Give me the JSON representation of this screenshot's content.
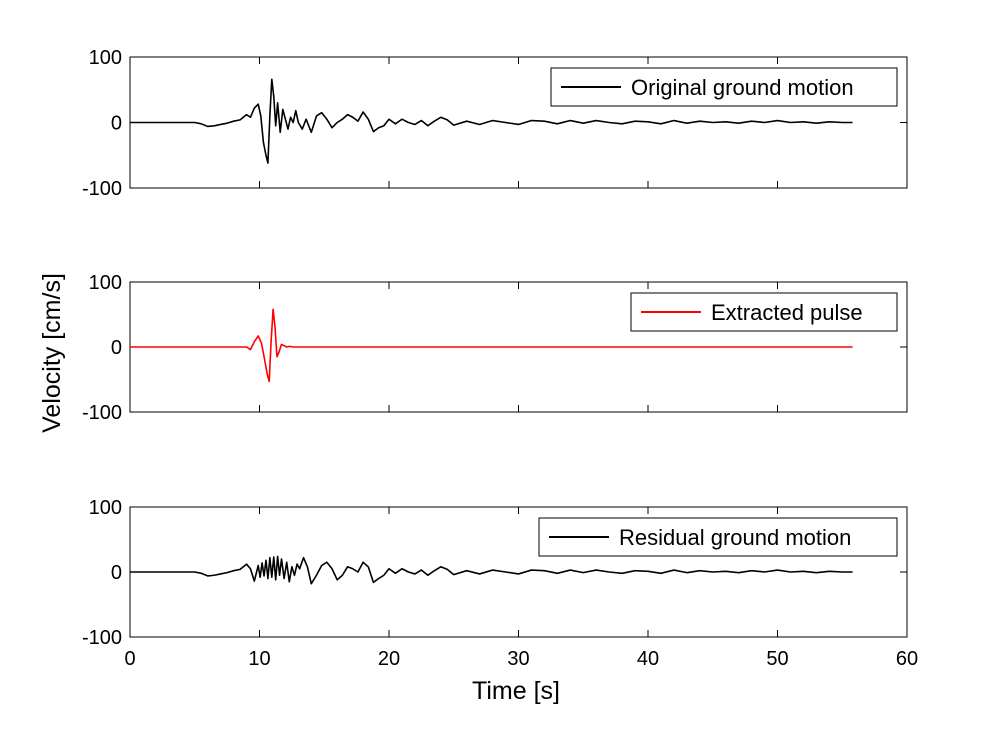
{
  "figure": {
    "shared_ylabel": "Velocity [cm/s]",
    "shared_xlabel": "Time [s]"
  },
  "chart_data": [
    {
      "type": "line",
      "panel": "top",
      "xlim": [
        0,
        60
      ],
      "ylim": [
        -100,
        100
      ],
      "xticks": [
        0,
        10,
        20,
        30,
        40,
        50,
        60
      ],
      "yticks": [
        -100,
        0,
        100
      ],
      "xtick_labels_shown": false,
      "grid": false,
      "legend": "top-right",
      "series": [
        {
          "name": "Original ground motion",
          "color": "#000000",
          "x": [
            0,
            2,
            4,
            5,
            5.5,
            6,
            6.5,
            7,
            7.5,
            8,
            8.5,
            9,
            9.3,
            9.6,
            9.9,
            10.1,
            10.3,
            10.5,
            10.65,
            10.8,
            10.95,
            11.1,
            11.25,
            11.4,
            11.6,
            11.8,
            12.0,
            12.2,
            12.4,
            12.6,
            12.8,
            13.0,
            13.3,
            13.6,
            14.0,
            14.4,
            14.8,
            15.2,
            15.6,
            16.0,
            16.4,
            16.8,
            17.2,
            17.6,
            18.0,
            18.4,
            18.8,
            19.2,
            19.6,
            20.0,
            20.5,
            21.0,
            21.5,
            22.0,
            22.5,
            23.0,
            23.5,
            24.0,
            24.5,
            25.0,
            26.0,
            27.0,
            28.0,
            29.0,
            30.0,
            31.0,
            32.0,
            33.0,
            34.0,
            35.0,
            36.0,
            37.0,
            38.0,
            39.0,
            40.0,
            41.0,
            42.0,
            43.0,
            44.0,
            45.0,
            46.0,
            47.0,
            48.0,
            49.0,
            50.0,
            51.0,
            52.0,
            53.0,
            54.0,
            55.0,
            55.8
          ],
          "y": [
            0,
            0,
            0,
            0,
            -2,
            -6,
            -5,
            -3,
            -1,
            2,
            4,
            12,
            8,
            22,
            28,
            10,
            -30,
            -50,
            -62,
            10,
            66,
            40,
            -5,
            30,
            -15,
            20,
            5,
            -10,
            8,
            0,
            18,
            0,
            -10,
            5,
            -15,
            10,
            15,
            5,
            -8,
            0,
            5,
            12,
            8,
            2,
            16,
            5,
            -14,
            -8,
            -5,
            5,
            -2,
            5,
            0,
            -3,
            3,
            -5,
            2,
            8,
            4,
            -4,
            2,
            -3,
            3,
            0,
            -3,
            3,
            2,
            -2,
            3,
            -1,
            3,
            0,
            -2,
            2,
            1,
            -2,
            3,
            -1,
            2,
            0,
            1,
            -1,
            2,
            0,
            3,
            0,
            1,
            -1,
            1,
            0,
            0
          ]
        }
      ]
    },
    {
      "type": "line",
      "panel": "middle",
      "xlim": [
        0,
        60
      ],
      "ylim": [
        -100,
        100
      ],
      "xticks": [
        0,
        10,
        20,
        30,
        40,
        50,
        60
      ],
      "yticks": [
        -100,
        0,
        100
      ],
      "xtick_labels_shown": false,
      "grid": false,
      "legend": "top-right",
      "series": [
        {
          "name": "Extracted pulse",
          "color": "#ff0000",
          "x": [
            0,
            8.5,
            9.0,
            9.3,
            9.6,
            9.9,
            10.15,
            10.4,
            10.6,
            10.75,
            10.9,
            11.05,
            11.2,
            11.35,
            11.5,
            11.7,
            11.9,
            12.1,
            12.3,
            12.6,
            13.0,
            55.8
          ],
          "y": [
            0,
            0,
            0,
            -4,
            8,
            17,
            6,
            -20,
            -42,
            -53,
            10,
            58,
            30,
            -15,
            -8,
            4,
            2,
            0,
            1,
            0,
            0,
            0
          ]
        }
      ]
    },
    {
      "type": "line",
      "panel": "bottom",
      "xlim": [
        0,
        60
      ],
      "ylim": [
        -100,
        100
      ],
      "xticks": [
        0,
        10,
        20,
        30,
        40,
        50,
        60
      ],
      "yticks": [
        -100,
        0,
        100
      ],
      "xtick_labels_shown": true,
      "grid": false,
      "legend": "top-right",
      "series": [
        {
          "name": "Residual ground motion",
          "color": "#000000",
          "x": [
            0,
            2,
            4,
            5,
            5.5,
            6,
            6.5,
            7,
            7.5,
            8,
            8.5,
            9,
            9.3,
            9.6,
            9.9,
            10.05,
            10.2,
            10.35,
            10.5,
            10.65,
            10.8,
            10.95,
            11.1,
            11.25,
            11.4,
            11.55,
            11.7,
            11.9,
            12.1,
            12.3,
            12.5,
            12.7,
            12.9,
            13.1,
            13.4,
            13.7,
            14.0,
            14.4,
            14.8,
            15.2,
            15.6,
            16.0,
            16.4,
            16.8,
            17.2,
            17.6,
            18.0,
            18.4,
            18.8,
            19.2,
            19.6,
            20.0,
            20.5,
            21.0,
            21.5,
            22.0,
            22.5,
            23.0,
            23.5,
            24.0,
            24.5,
            25.0,
            26.0,
            27.0,
            28.0,
            29.0,
            30.0,
            31.0,
            32.0,
            33.0,
            34.0,
            35.0,
            36.0,
            37.0,
            38.0,
            39.0,
            40.0,
            41.0,
            42.0,
            43.0,
            44.0,
            45.0,
            46.0,
            47.0,
            48.0,
            49.0,
            50.0,
            51.0,
            52.0,
            53.0,
            54.0,
            55.0,
            55.8
          ],
          "y": [
            0,
            0,
            0,
            0,
            -2,
            -6,
            -5,
            -3,
            -1,
            2,
            4,
            12,
            5,
            -14,
            10,
            -8,
            14,
            -6,
            18,
            -10,
            22,
            -8,
            23,
            -12,
            24,
            -5,
            20,
            -10,
            15,
            -15,
            8,
            -5,
            12,
            5,
            22,
            8,
            -18,
            -5,
            10,
            15,
            5,
            -12,
            -5,
            8,
            5,
            0,
            15,
            8,
            -16,
            -10,
            -5,
            5,
            -2,
            5,
            0,
            -3,
            3,
            -5,
            2,
            8,
            4,
            -4,
            2,
            -3,
            3,
            0,
            -3,
            3,
            2,
            -2,
            3,
            -1,
            3,
            0,
            -2,
            2,
            1,
            -2,
            3,
            -1,
            2,
            0,
            1,
            -1,
            2,
            0,
            3,
            0,
            1,
            -1,
            1,
            0,
            0
          ]
        }
      ]
    }
  ]
}
